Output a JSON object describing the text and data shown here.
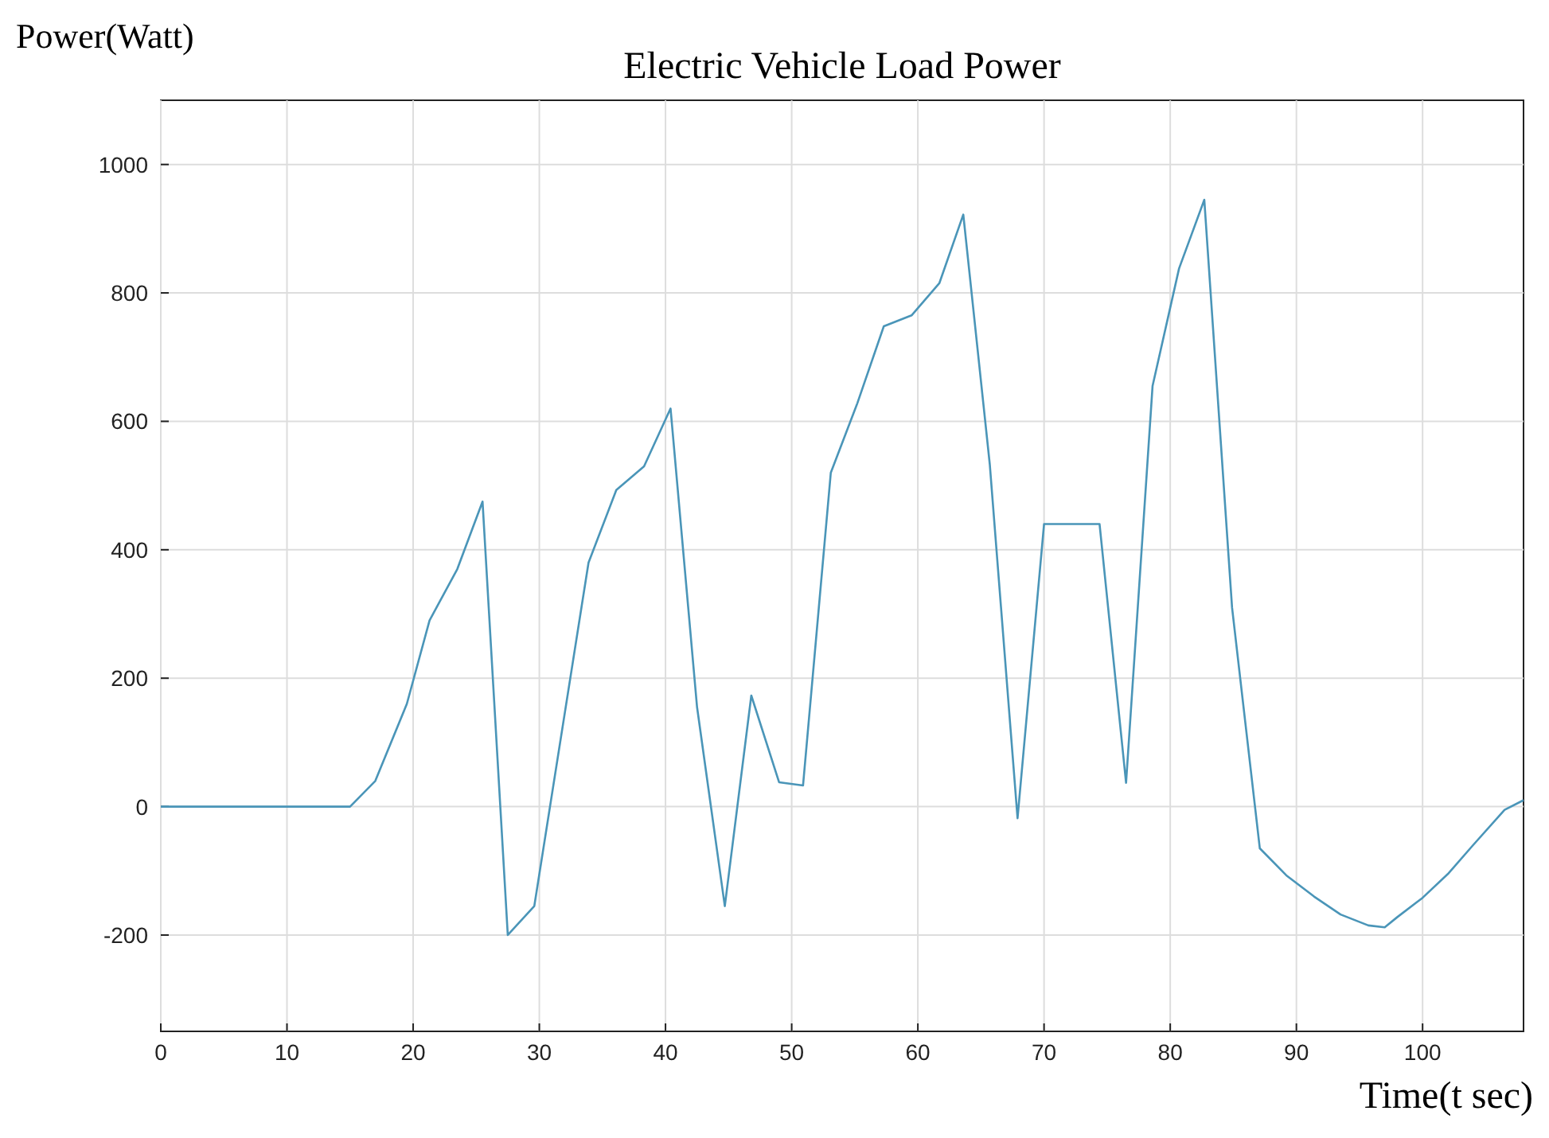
{
  "chart_data": {
    "type": "line",
    "title": "Electric Vehicle Load Power",
    "xlabel": "Time(t sec)",
    "ylabel": "Power(Watt)",
    "xlim": [
      0,
      108
    ],
    "xticks": [
      0,
      10,
      20,
      30,
      40,
      50,
      60,
      70,
      80,
      90,
      100
    ],
    "ylim": [
      -350,
      1100
    ],
    "yticks": [
      -200,
      0,
      200,
      400,
      600,
      800,
      1000
    ],
    "grid": true,
    "series": [
      {
        "color": "#4a95b8",
        "x": [
          0,
          15,
          17,
          19.5,
          21.3,
          23.5,
          25.5,
          27.5,
          29.6,
          33.9,
          36.1,
          38.3,
          40.4,
          42.5,
          44.7,
          46.8,
          49,
          50.9,
          53.1,
          55.2,
          57.3,
          59.5,
          61.7,
          63.6,
          65.7,
          67.9,
          70,
          74.4,
          76.5,
          78.6,
          80.7,
          82.7,
          84.9,
          87.1,
          89.2,
          91.4,
          93.5,
          95.7,
          97,
          98,
          100,
          102,
          104,
          106.5,
          108
        ],
        "values": [
          0,
          0,
          40,
          160,
          290,
          370,
          475,
          -200,
          -155,
          380,
          493,
          530,
          620,
          155,
          -155,
          173,
          38,
          33,
          520,
          628,
          748,
          765,
          815,
          922,
          533,
          -18,
          440,
          440,
          37,
          655,
          838,
          945,
          310,
          -65,
          -107,
          -140,
          -168,
          -185,
          -188,
          -172,
          -142,
          -105,
          -60,
          -5,
          10
        ]
      }
    ]
  }
}
